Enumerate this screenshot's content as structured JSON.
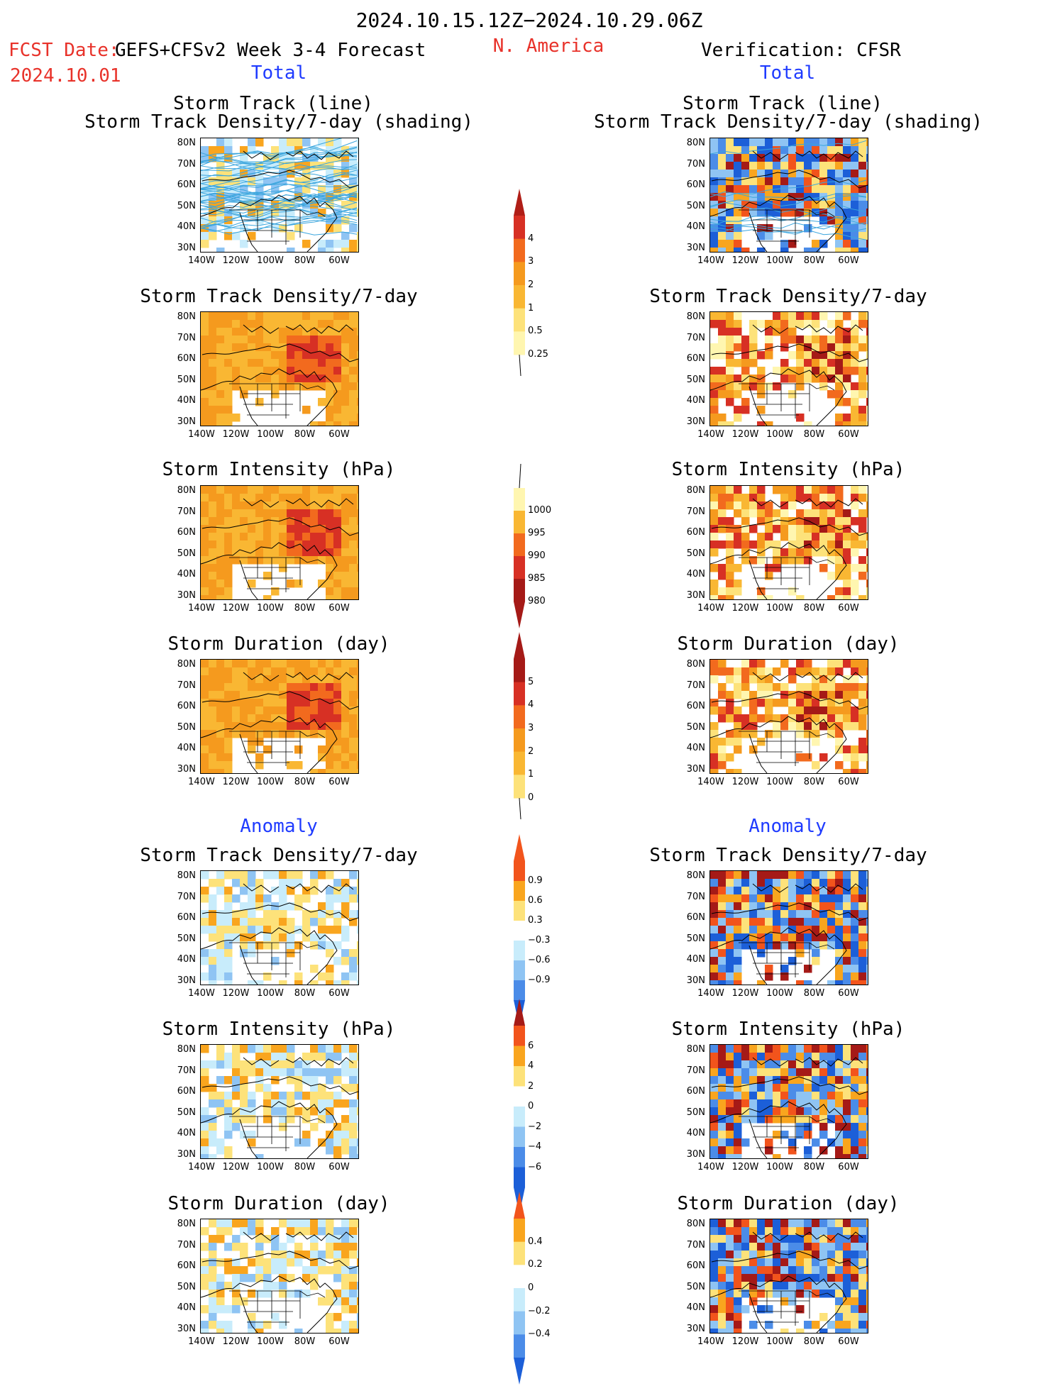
{
  "header": {
    "period": "2024.10.15.12Z−2024.10.29.06Z",
    "fcst_label": "FCST Date:",
    "model_label": "GEFS+CFSv2 Week 3-4 Forecast",
    "fcst_date": "2024.10.01",
    "region": "N. America",
    "verification": "Verification: CFSR"
  },
  "sections": {
    "total": "Total",
    "anomaly": "Anomaly"
  },
  "panels": {
    "track_line": "Storm Track (line)",
    "track_shading": "Storm Track Density/7-day (shading)",
    "density": "Storm Track Density/7-day",
    "intensity": "Storm Intensity (hPa)",
    "duration": "Storm Duration (day)"
  },
  "axes": {
    "y": [
      "80N",
      "70N",
      "60N",
      "50N",
      "40N",
      "30N"
    ],
    "x": [
      "140W",
      "120W",
      "100W",
      "80W",
      "60W"
    ]
  },
  "colorbars": {
    "density_total": [
      "4",
      "3",
      "2",
      "1",
      "0.5",
      "0.25"
    ],
    "intensity_total": [
      "1000",
      "995",
      "990",
      "985",
      "980"
    ],
    "duration_total": [
      "5",
      "4",
      "3",
      "2",
      "1",
      "0"
    ],
    "density_anom": [
      "0.9",
      "0.6",
      "0.3",
      "−0.3",
      "−0.6",
      "−0.9"
    ],
    "intensity_anom": [
      "6",
      "4",
      "2",
      "0",
      "−2",
      "−4",
      "−6"
    ],
    "duration_anom": [
      "0.4",
      "0.2",
      "0",
      "−0.2",
      "−0.4"
    ]
  }
}
